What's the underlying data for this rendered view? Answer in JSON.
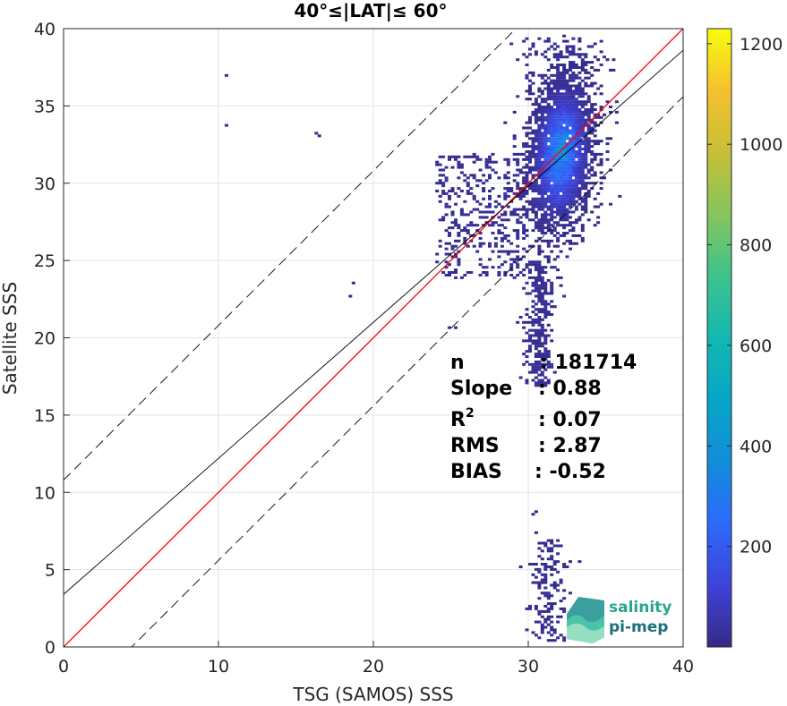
{
  "chart_data": {
    "type": "heatmap",
    "title": "40°≤|LAT|≤ 60°",
    "xlabel": "TSG (SAMOS) SSS",
    "ylabel": "Satellite SSS",
    "xlim": [
      0,
      40
    ],
    "ylim": [
      0,
      40
    ],
    "x_ticks": [
      "0",
      "10",
      "20",
      "30",
      "40"
    ],
    "y_ticks": [
      "0",
      "5",
      "10",
      "15",
      "20",
      "25",
      "30",
      "35",
      "40"
    ],
    "grid": true,
    "colorbar": {
      "range": [
        0,
        1230
      ],
      "ticks": [
        "200",
        "400",
        "600",
        "800",
        "1000",
        "1200"
      ],
      "colormap": "parula"
    },
    "density_cluster": {
      "center_x": 32,
      "center_y": 32,
      "peak_count": 420
    },
    "lines": [
      {
        "kind": "one-to-one",
        "color": "#ff0000",
        "slope": 1,
        "intercept": 0
      },
      {
        "kind": "regression-fit",
        "color": "#000000",
        "slope": 0.88,
        "intercept": 3.4
      },
      {
        "kind": "upper-bound",
        "color": "#000000",
        "style": "dashed",
        "slope": 1,
        "intercept": 10.8
      },
      {
        "kind": "lower-bound",
        "color": "#000000",
        "style": "dashed",
        "slope": 1,
        "intercept": -4.4
      }
    ],
    "stats": [
      {
        "label": "n",
        "value": ": 181714"
      },
      {
        "label": "Slope",
        "value": ": 0.88"
      },
      {
        "label": "R",
        "sup": "2",
        "value": ": 0.07"
      },
      {
        "label": "RMS",
        "value": ": 2.87"
      },
      {
        "label": "BIAS",
        "value": ": -0.52"
      }
    ]
  },
  "logo": {
    "line1": "salinity",
    "line2": "pi-mep",
    "color_line1": "#2aa58c",
    "color_line2": "#1c6f7a"
  }
}
